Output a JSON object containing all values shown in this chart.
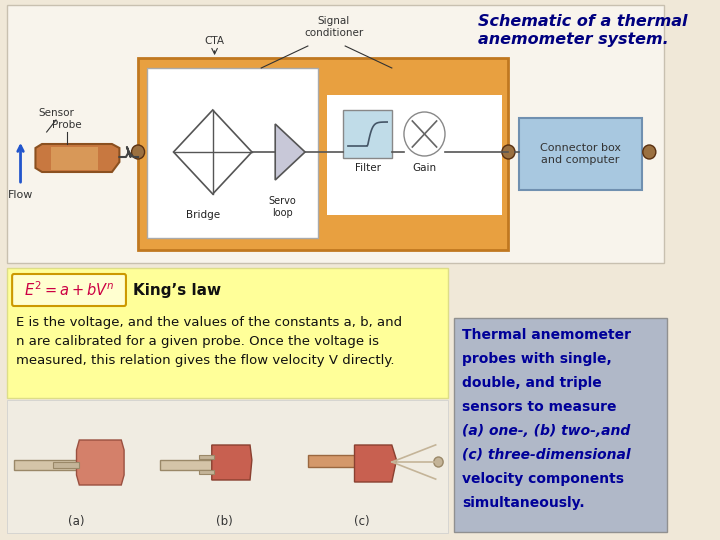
{
  "bg_color": "#f0e8d8",
  "title_line1": "Schematic of a thermal",
  "title_line2": "anemometer system.",
  "title_color": "#000080",
  "title_fontsize": 11.5,
  "kings_law_formula": "$E^2 = a + bV^n$",
  "kings_law_label": "King’s law",
  "kings_law_bg": "#ffff99",
  "kings_law_formula_color": "#cc0044",
  "body_text_line1": "E is the voltage, and the values of the constants a, b, and",
  "body_text_line2": "n are calibrated for a given probe. Once the voltage is",
  "body_text_line3": "measured, this relation gives the flow velocity V directly.",
  "body_text_color": "#111111",
  "sidebar_line1": "Thermal anemometer",
  "sidebar_line2": "probes with single,",
  "sidebar_line3": "double, and triple",
  "sidebar_line4": "sensors to measure",
  "sidebar_line5": "(a) one-, (b) two-,and",
  "sidebar_line6": "(c) three-dimensional",
  "sidebar_line7": "velocity components",
  "sidebar_line8": "simultaneously.",
  "sidebar_bg": "#b0b8c8",
  "sidebar_text_color": "#000099",
  "orange_box_color": "#e8a040",
  "white_inner_bg": "#ffffff",
  "blue_box_color": "#a8c8e0",
  "connector_box_text": "Connector box\nand computer",
  "bridge_label": "Bridge",
  "servo_loop_label": "Servo\nloop",
  "filter_label": "Filter",
  "gain_label": "Gain",
  "cta_label": "CTA",
  "signal_cond_label": "Signal\nconditioner",
  "sensor_label": "Sensor",
  "probe_label": "Probe",
  "flow_label": "Flow",
  "top_panel_bg": "#f8f4ec",
  "top_panel_border": "#c8c0b0"
}
